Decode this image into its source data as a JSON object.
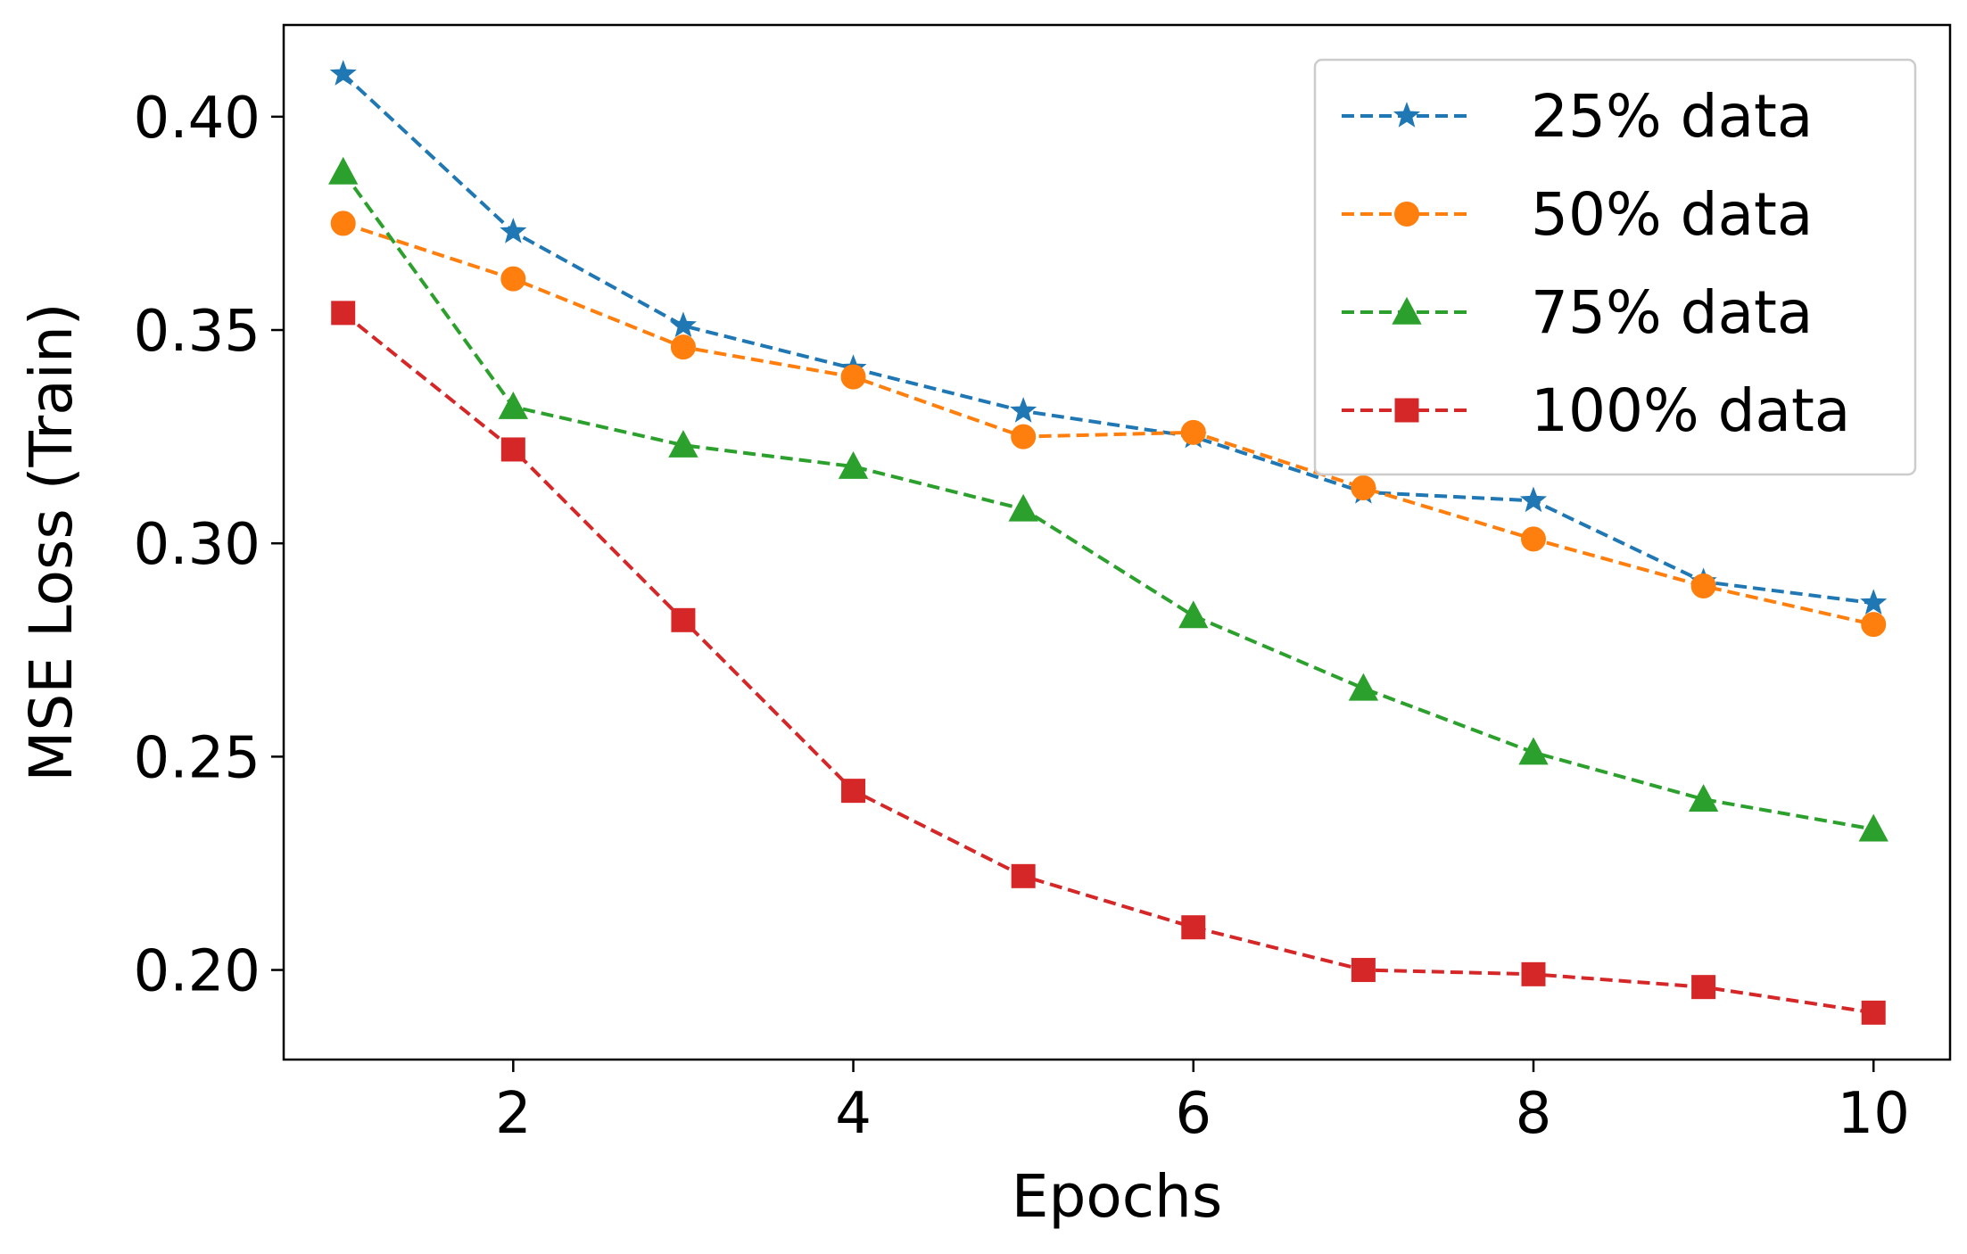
{
  "chart_data": {
    "type": "line",
    "title": "",
    "xlabel": "Epochs",
    "ylabel": "MSE Loss (Train)",
    "xlim": [
      0.65,
      10.45
    ],
    "ylim": [
      0.179,
      0.4215
    ],
    "xticks": [
      2,
      4,
      6,
      8,
      10
    ],
    "xtick_labels": [
      "2",
      "4",
      "6",
      "8",
      "10"
    ],
    "yticks": [
      0.2,
      0.25,
      0.3,
      0.35,
      0.4
    ],
    "ytick_labels": [
      "0.20",
      "0.25",
      "0.30",
      "0.35",
      "0.40"
    ],
    "grid": false,
    "legend_position": "top-right",
    "x": [
      1,
      2,
      3,
      4,
      5,
      6,
      7,
      8,
      9,
      10
    ],
    "series": [
      {
        "name": "25% data",
        "color": "#1f77b4",
        "marker": "star",
        "linestyle": "dashed",
        "values": [
          0.41,
          0.373,
          0.351,
          0.341,
          0.331,
          0.325,
          0.312,
          0.31,
          0.291,
          0.286
        ]
      },
      {
        "name": "50% data",
        "color": "#ff7f0e",
        "marker": "circle",
        "linestyle": "dashed",
        "values": [
          0.375,
          0.362,
          0.346,
          0.339,
          0.325,
          0.326,
          0.313,
          0.301,
          0.29,
          0.281
        ]
      },
      {
        "name": "75% data",
        "color": "#2ca02c",
        "marker": "triangle",
        "linestyle": "dashed",
        "values": [
          0.387,
          0.332,
          0.323,
          0.318,
          0.308,
          0.283,
          0.266,
          0.251,
          0.24,
          0.233
        ]
      },
      {
        "name": "100% data",
        "color": "#d62728",
        "marker": "square",
        "linestyle": "dashed",
        "values": [
          0.354,
          0.322,
          0.282,
          0.242,
          0.222,
          0.21,
          0.2,
          0.199,
          0.196,
          0.19
        ]
      }
    ]
  }
}
